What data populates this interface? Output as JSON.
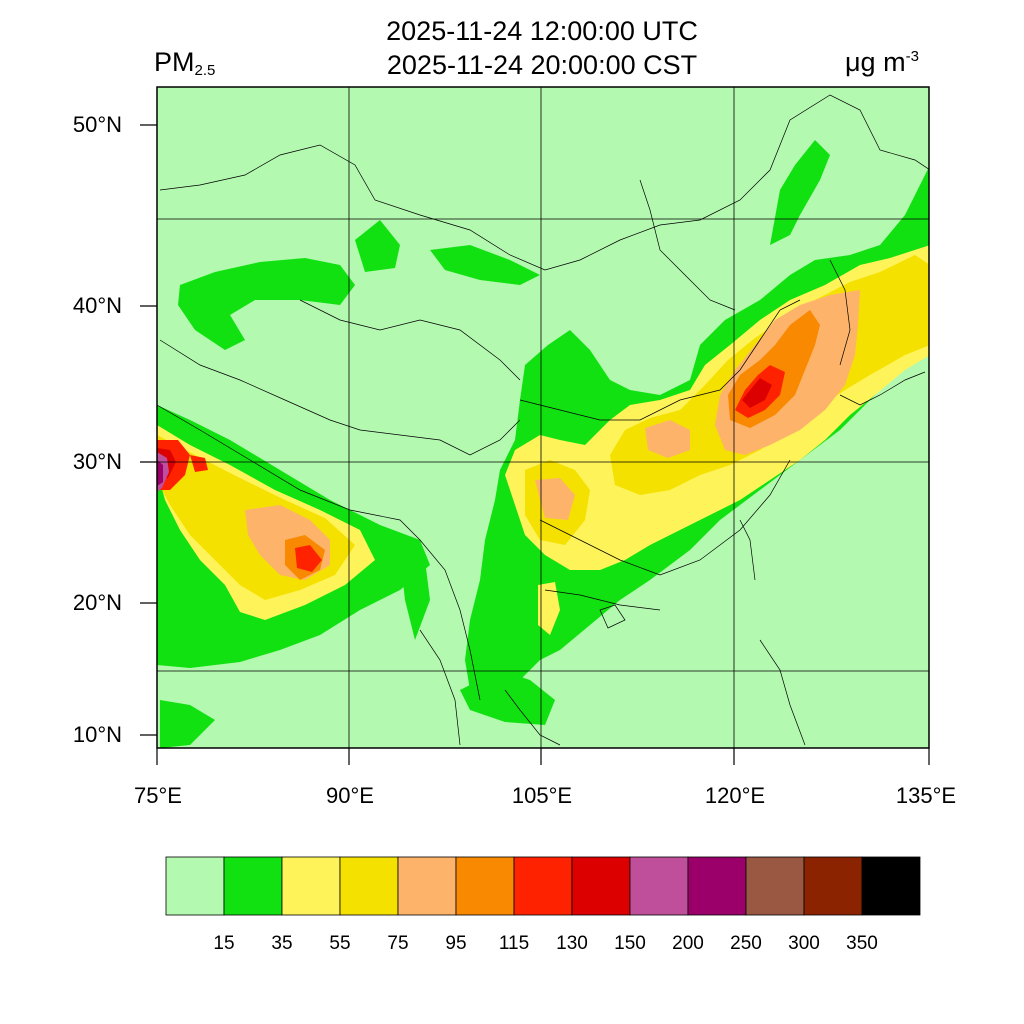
{
  "header": {
    "title_utc": "2025-11-24 12:00:00 UTC",
    "title_cst": "2025-11-24 20:00:00 CST",
    "variable": "PM",
    "variable_sub": "2.5",
    "unit": "μg m",
    "unit_sup": "-3"
  },
  "map": {
    "lat_labels": [
      "50°N",
      "40°N",
      "30°N",
      "20°N",
      "10°N"
    ],
    "lon_labels": [
      "75°E",
      "90°E",
      "105°E",
      "120°E",
      "135°E"
    ],
    "background_level": "<15"
  },
  "colorbar": {
    "levels": [
      "15",
      "35",
      "55",
      "75",
      "95",
      "115",
      "130",
      "150",
      "200",
      "250",
      "300",
      "350"
    ],
    "colors": [
      "#b3f9b0",
      "#11e111",
      "#fff35a",
      "#f4e100",
      "#fdb46a",
      "#f88900",
      "#ff2200",
      "#dd0000",
      "#c04f9b",
      "#9b006a",
      "#9a5843",
      "#8b2200",
      "#000000"
    ]
  }
}
